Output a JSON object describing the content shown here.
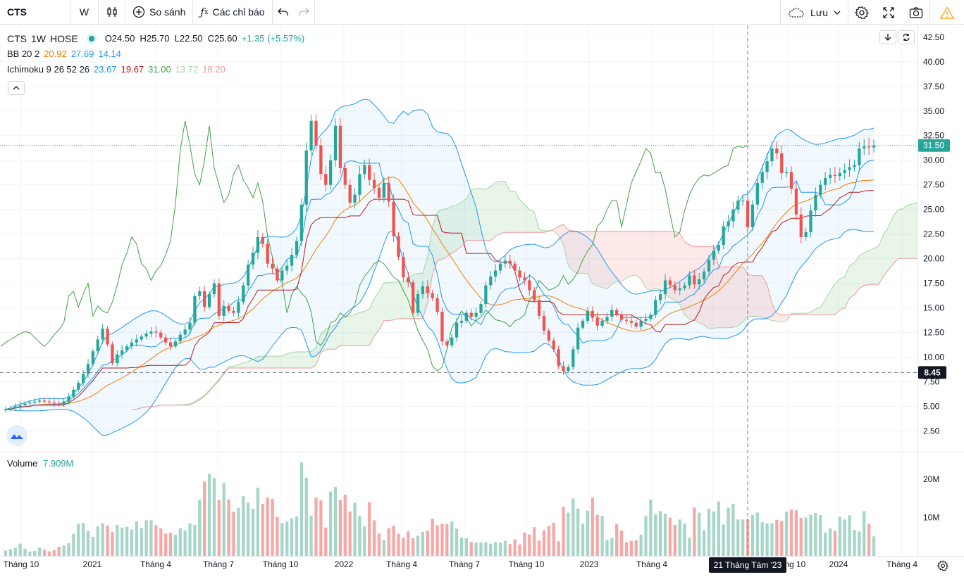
{
  "toolbar": {
    "symbol": "CTS",
    "interval": "W",
    "compare_label": "So sánh",
    "indicators_label": "Các chỉ báo",
    "save_label": "Lưu"
  },
  "legend": {
    "symbol": "CTS",
    "interval": "1W",
    "exchange": "HOSE",
    "ohlc": "O24.50  H25.70  L22.50  C25.60",
    "change": "+1.35 (+5.57%)",
    "bb_label": "BB 20 2",
    "bb_values": [
      "20.92",
      "27.69",
      "14.14"
    ],
    "ichimoku_label": "Ichimoku 9 26 52 26",
    "ichimoku_values": [
      "23.67",
      "19.67",
      "31.00",
      "13.72",
      "18.20"
    ]
  },
  "volume_legend": {
    "label": "Volume",
    "value": "7.909M"
  },
  "colors": {
    "up": "#26a69a",
    "up_volume": "#a5d6c7",
    "down": "#ef5350",
    "down_volume": "#f5a8a6",
    "bb_basis": "#f57c00",
    "bb_band": "#2196f3",
    "tenkan": "#2196f3",
    "kijun": "#b71c1c",
    "chikou": "#43a047",
    "span_a": "#a5d6a7",
    "span_b": "#ef9a9a"
  },
  "chart_data": {
    "type": "candlestick",
    "symbol": "CTS",
    "interval": "1W",
    "y_axis_ticks": [
      "42.50",
      "40.00",
      "37.50",
      "35.00",
      "32.50",
      "30.00",
      "27.50",
      "25.00",
      "22.50",
      "20.00",
      "17.50",
      "15.00",
      "12.50",
      "10.00",
      "7.50",
      "5.00",
      "2.50"
    ],
    "ylim": [
      0.4,
      43.7
    ],
    "volume_ticks": [
      "20M",
      "10M"
    ],
    "x_axis_labels": [
      "Tháng 10",
      "2021",
      "Tháng 4",
      "Tháng 7",
      "Tháng 10",
      "2022",
      "Tháng 4",
      "Tháng 7",
      "Tháng 10",
      "2023",
      "Tháng 4",
      "Tháng 8",
      "Tháng 10",
      "2024",
      "Tháng 4"
    ],
    "last_price_tag": "31.50",
    "crosshair_price_tag": "8.45",
    "crosshair_time_tag": "21 Tháng Tám '23",
    "last_close": 31.5,
    "crosshair_price": 8.45,
    "series_close": [
      4.7,
      4.8,
      5.0,
      5.1,
      5.3,
      5.4,
      5.5,
      5.6,
      5.5,
      5.4,
      5.3,
      5.2,
      5.5,
      6.0,
      6.7,
      7.4,
      8.3,
      9.3,
      10.6,
      11.8,
      12.9,
      11.3,
      9.4,
      10.3,
      10.7,
      11.1,
      11.5,
      11.8,
      12.1,
      12.4,
      12.6,
      12.5,
      12.0,
      11.5,
      11.1,
      11.6,
      12.3,
      12.8,
      13.5,
      16.2,
      16.7,
      15.1,
      16.4,
      17.5,
      14.2,
      15.2,
      14.7,
      14.5,
      15.6,
      17.3,
      19.4,
      20.6,
      22.2,
      21.5,
      19.5,
      19.0,
      17.8,
      18.8,
      19.3,
      20.4,
      21.8,
      25.5,
      31.0,
      34.0,
      31.5,
      28.6,
      27.5,
      30.0,
      33.5,
      29.2,
      27.5,
      25.7,
      26.5,
      28.6,
      29.5,
      28.0,
      27.2,
      26.2,
      27.7,
      25.8,
      22.3,
      20.2,
      18.1,
      17.6,
      14.5,
      16.4,
      17.2,
      16.5,
      16.0,
      14.6,
      11.6,
      11.2,
      12.0,
      13.5,
      13.7,
      14.5,
      14.1,
      14.5,
      15.4,
      17.3,
      18.2,
      18.8,
      19.5,
      19.8,
      19.5,
      18.8,
      18.1,
      17.8,
      16.8,
      15.8,
      14.2,
      12.7,
      11.7,
      10.8,
      9.1,
      8.6,
      9.0,
      10.8,
      13.0,
      13.7,
      14.7,
      14.0,
      13.2,
      13.7,
      14.1,
      14.8,
      14.3,
      13.8,
      13.7,
      13.5,
      13.1,
      13.7,
      13.9,
      14.3,
      15.8,
      16.4,
      17.8,
      17.3,
      16.8,
      17.0,
      17.3,
      18.3,
      17.4,
      17.9,
      18.7,
      19.9,
      20.8,
      21.4,
      23.3,
      23.8,
      25.0,
      25.9,
      25.9,
      23.2,
      25.5,
      27.7,
      28.8,
      29.9,
      31.2,
      30.7,
      28.7,
      28.8,
      27.1,
      24.5,
      22.2,
      22.7,
      24.9,
      26.5,
      27.5,
      28.2,
      28.5,
      28.4,
      28.7,
      29.0,
      29.3,
      29.5,
      31.2,
      31.4,
      31.3,
      31.5
    ],
    "volume_millions": [
      1.4,
      1.8,
      2.1,
      3.2,
      1.9,
      1.1,
      1.3,
      2.2,
      1.6,
      1.2,
      1.5,
      2.4,
      2.7,
      3.3,
      5.8,
      8.4,
      8.6,
      6.5,
      5.0,
      7.7,
      8.5,
      7.9,
      6.3,
      8.1,
      7.4,
      7.6,
      6.9,
      9.0,
      7.3,
      9.3,
      9.3,
      8.0,
      7.2,
      5.8,
      6.0,
      5.5,
      7.2,
      6.7,
      8.5,
      8.1,
      14.7,
      19.4,
      21.4,
      20.3,
      14.6,
      19.0,
      14.7,
      11.5,
      12.5,
      15.6,
      13.9,
      12.3,
      17.8,
      13.6,
      15.2,
      14.9,
      10.2,
      8.6,
      8.9,
      9.8,
      10.3,
      24.4,
      20.4,
      10.5,
      15.2,
      14.5,
      7.4,
      16.8,
      18.0,
      14.6,
      16.0,
      11.6,
      13.9,
      10.4,
      7.7,
      14.0,
      9.3,
      5.8,
      4.1,
      7.2,
      7.9,
      5.8,
      4.8,
      6.4,
      4.6,
      5.3,
      6.3,
      6.6,
      9.7,
      8.0,
      8.4,
      8.3,
      9.0,
      7.1,
      4.8,
      4.6,
      3.6,
      3.5,
      3.5,
      3.6,
      3.2,
      3.6,
      3.5,
      3.9,
      3.1,
      4.3,
      3.0,
      6.1,
      5.6,
      7.5,
      4.0,
      6.7,
      7.8,
      8.7,
      3.8,
      12.8,
      11.3,
      15.0,
      12.3,
      8.4,
      11.8,
      15.2,
      10.7,
      10.5,
      4.2,
      4.7,
      8.3,
      6.6,
      3.6,
      3.9,
      4.1,
      5.5,
      10.4,
      14.7,
      10.9,
      11.7,
      11.0,
      10.0,
      8.1,
      9.5,
      8.4,
      4.8,
      12.6,
      11.3,
      6.7,
      12.3,
      11.6,
      14.2,
      8.2,
      12.6,
      13.6,
      9.5,
      9.5,
      9.6,
      10.7,
      11.3,
      8.8,
      8.5,
      8.5,
      9.4,
      9.1,
      11.6,
      12.1,
      11.9,
      9.9,
      10.0,
      10.7,
      11.2,
      10.7,
      6.1,
      7.2,
      6.5,
      10.2,
      9.5,
      10.6,
      6.8,
      6.4,
      11.7,
      8.4,
      5.1,
      4.1,
      6.9,
      7.0,
      7.2
    ]
  }
}
